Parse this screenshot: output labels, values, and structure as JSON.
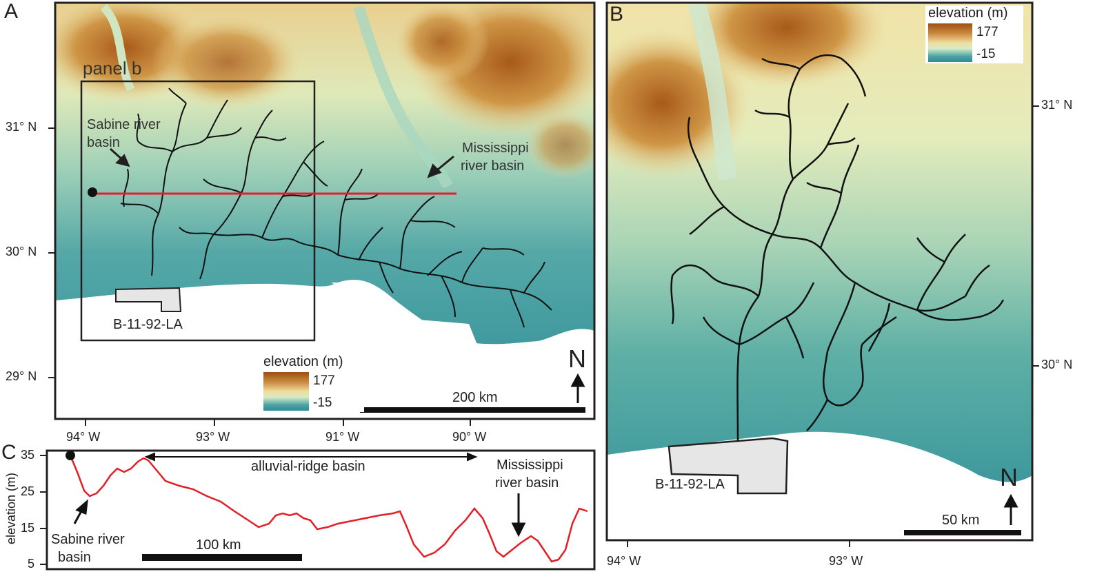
{
  "panels": {
    "a": "A",
    "b": "B",
    "c": "C"
  },
  "panel_a": {
    "box_label": "panel b",
    "sabine_label_1": "Sabine river",
    "sabine_label_2": "basin",
    "miss_label_1": "Mississippi",
    "miss_label_2": "river basin",
    "site_label": "B-11-92-LA",
    "lat_ticks": [
      "31° N",
      "30° N",
      "29° N"
    ],
    "lon_ticks": [
      "94° W",
      "93° W",
      "91° W",
      "90° W"
    ],
    "legend": {
      "title": "elevation (m)",
      "max": "177",
      "min": "-15"
    },
    "scale_label": "200 km",
    "north": "N"
  },
  "panel_b": {
    "site_label": "B-11-92-LA",
    "lat_ticks": [
      "31° N",
      "30° N"
    ],
    "lon_ticks": [
      "94° W",
      "93° W"
    ],
    "legend": {
      "title": "elevation (m)",
      "max": "177",
      "min": "-15"
    },
    "scale_label": "50 km",
    "north": "N"
  },
  "panel_c": {
    "ylabel": "elevation (m)",
    "y_ticks": [
      "35",
      "25",
      "15",
      "5"
    ],
    "ridge_label": "alluvial-ridge basin",
    "sabine_label_1": "Sabine river",
    "sabine_label_2": "basin",
    "miss_label_1": "Mississippi",
    "miss_label_2": "river basin",
    "scale_label": "100 km"
  },
  "colors": {
    "profile": "#e31e25",
    "frame": "#231f20",
    "sea": "#ffffff",
    "site": "#e6e6e6"
  }
}
